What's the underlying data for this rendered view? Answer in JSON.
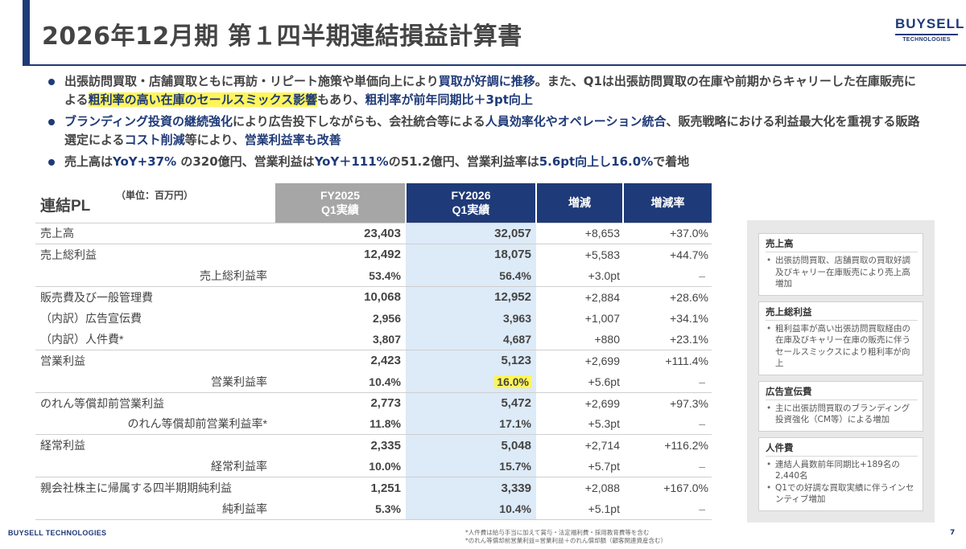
{
  "header": {
    "title": "2026年12月期 第１四半期連結損益計算書",
    "logo_main": "BUYSELL",
    "logo_sub": "TECHNOLOGIES"
  },
  "bullets": [
    {
      "segments": [
        {
          "text": "出張訪問買取・店舗買取ともに再訪・リピート施策や単価向上により",
          "style": ""
        },
        {
          "text": "買取が好調に推移",
          "style": "blue"
        },
        {
          "text": "。また、Q1は出張訪問買取の在庫や前期からキャリーした在庫販売による",
          "style": ""
        },
        {
          "text": "粗利率の高い在庫のセールスミックス影響",
          "style": "blue-yellow"
        },
        {
          "text": "もあり、",
          "style": ""
        },
        {
          "text": "粗利率が前年同期比＋3pt向上",
          "style": "blue"
        }
      ]
    },
    {
      "segments": [
        {
          "text": "ブランディング投資の継続強化",
          "style": "blue"
        },
        {
          "text": "により広告投下しながらも、会社統合等による",
          "style": ""
        },
        {
          "text": "人員効率化やオペレーション統合",
          "style": "blue"
        },
        {
          "text": "、販売戦略における利益最大化を重視する販路選定による",
          "style": ""
        },
        {
          "text": "コスト削減",
          "style": "blue"
        },
        {
          "text": "等により、",
          "style": ""
        },
        {
          "text": "営業利益率も改善",
          "style": "blue"
        }
      ]
    },
    {
      "segments": [
        {
          "text": "売上高は",
          "style": ""
        },
        {
          "text": "YoY+37%",
          "style": "blue"
        },
        {
          "text": " の320億円、営業利益は",
          "style": ""
        },
        {
          "text": "YoY＋111%",
          "style": "blue"
        },
        {
          "text": "の51.2億円、営業利益率は",
          "style": ""
        },
        {
          "text": "5.6pt向上し16.0%",
          "style": "blue"
        },
        {
          "text": "で着地",
          "style": ""
        }
      ]
    }
  ],
  "table": {
    "title": "連結PL",
    "unit": "（単位：百万円）",
    "headers": {
      "fy2025": "FY2025\nQ1実績",
      "fy2026": "FY2026\nQ1実績",
      "change": "増減",
      "change_rate": "増減率"
    },
    "rows": [
      {
        "label": "売上高",
        "sub": false,
        "group_start": true,
        "fy2025": "23,403",
        "fy2026": "32,057",
        "change": "+8,653",
        "rate": "+37.0%",
        "bold": true,
        "highlight": false
      },
      {
        "label": "売上総利益",
        "sub": false,
        "group_start": true,
        "fy2025": "12,492",
        "fy2026": "18,075",
        "change": "+5,583",
        "rate": "+44.7%",
        "bold": true,
        "highlight": false
      },
      {
        "label": "売上総利益率",
        "sub": true,
        "group_start": false,
        "fy2025": "53.4%",
        "fy2026": "56.4%",
        "change": "+3.0pt",
        "rate": "–",
        "bold": false,
        "highlight": false
      },
      {
        "label": "販売費及び一般管理費",
        "sub": false,
        "group_start": true,
        "fy2025": "10,068",
        "fy2026": "12,952",
        "change": "+2,884",
        "rate": "+28.6%",
        "bold": true,
        "highlight": false
      },
      {
        "label": "（内訳）広告宣伝費",
        "sub": false,
        "group_start": false,
        "fy2025": "2,956",
        "fy2026": "3,963",
        "change": "+1,007",
        "rate": "+34.1%",
        "bold": false,
        "highlight": false
      },
      {
        "label": "（内訳）人件費*",
        "sub": false,
        "group_start": false,
        "fy2025": "3,807",
        "fy2026": "4,687",
        "change": "+880",
        "rate": "+23.1%",
        "bold": false,
        "highlight": false
      },
      {
        "label": "営業利益",
        "sub": false,
        "group_start": true,
        "fy2025": "2,423",
        "fy2026": "5,123",
        "change": "+2,699",
        "rate": "+111.4%",
        "bold": true,
        "highlight": false
      },
      {
        "label": "営業利益率",
        "sub": true,
        "group_start": false,
        "fy2025": "10.4%",
        "fy2026": "16.0%",
        "change": "+5.6pt",
        "rate": "–",
        "bold": false,
        "highlight": true
      },
      {
        "label": "のれん等償却前営業利益",
        "sub": false,
        "group_start": true,
        "fy2025": "2,773",
        "fy2026": "5,472",
        "change": "+2,699",
        "rate": "+97.3%",
        "bold": true,
        "highlight": false
      },
      {
        "label": "のれん等償却前営業利益率*",
        "sub": true,
        "group_start": false,
        "fy2025": "11.8%",
        "fy2026": "17.1%",
        "change": "+5.3pt",
        "rate": "–",
        "bold": false,
        "highlight": false
      },
      {
        "label": "経常利益",
        "sub": false,
        "group_start": true,
        "fy2025": "2,335",
        "fy2026": "5,048",
        "change": "+2,714",
        "rate": "+116.2%",
        "bold": true,
        "highlight": false
      },
      {
        "label": "経常利益率",
        "sub": true,
        "group_start": false,
        "fy2025": "10.0%",
        "fy2026": "15.7%",
        "change": "+5.7pt",
        "rate": "–",
        "bold": false,
        "highlight": false
      },
      {
        "label": "親会社株主に帰属する四半期期純利益",
        "sub": false,
        "group_start": true,
        "fy2025": "1,251",
        "fy2026": "3,339",
        "change": "+2,088",
        "rate": "+167.0%",
        "bold": true,
        "highlight": false
      },
      {
        "label": "純利益率",
        "sub": true,
        "group_start": false,
        "fy2025": "5.3%",
        "fy2026": "10.4%",
        "change": "+5.1pt",
        "rate": "–",
        "bold": false,
        "highlight": false
      }
    ]
  },
  "side_cards": [
    {
      "title": "売上高",
      "items": [
        "出張訪問買取、店舗買取の買取好調及びキャリー在庫販売により売上高増加"
      ]
    },
    {
      "title": "売上総利益",
      "items": [
        "粗利益率が高い出張訪問買取経由の在庫及びキャリー在庫の販売に伴うセールスミックスにより粗利率が向上"
      ]
    },
    {
      "title": "広告宣伝費",
      "items": [
        "主に出張訪問買取のブランディング投資強化（CM等）による増加"
      ]
    },
    {
      "title": "人件費",
      "items": [
        "連結人員数前年同期比+189名の2,440名",
        "Q1での好調な買取実績に伴うインセンティブ増加"
      ]
    }
  ],
  "footer": {
    "logo": "BUYSELL TECHNOLOGIES",
    "notes": [
      "*人件費は給与手当に加えて賞与・法定福利費・採用教育費等を含む",
      "*のれん等償却前営業利益=営業利益＋のれん償却額（顧客関連資産含む）"
    ],
    "page": "7"
  },
  "colors": {
    "brand_navy": "#1f3a78",
    "header_gray": "#a6a6a6",
    "fy2026_column": "#ddeaf7",
    "highlight_yellow": "#fff55a",
    "side_panel_bg": "#e8e8e8"
  }
}
